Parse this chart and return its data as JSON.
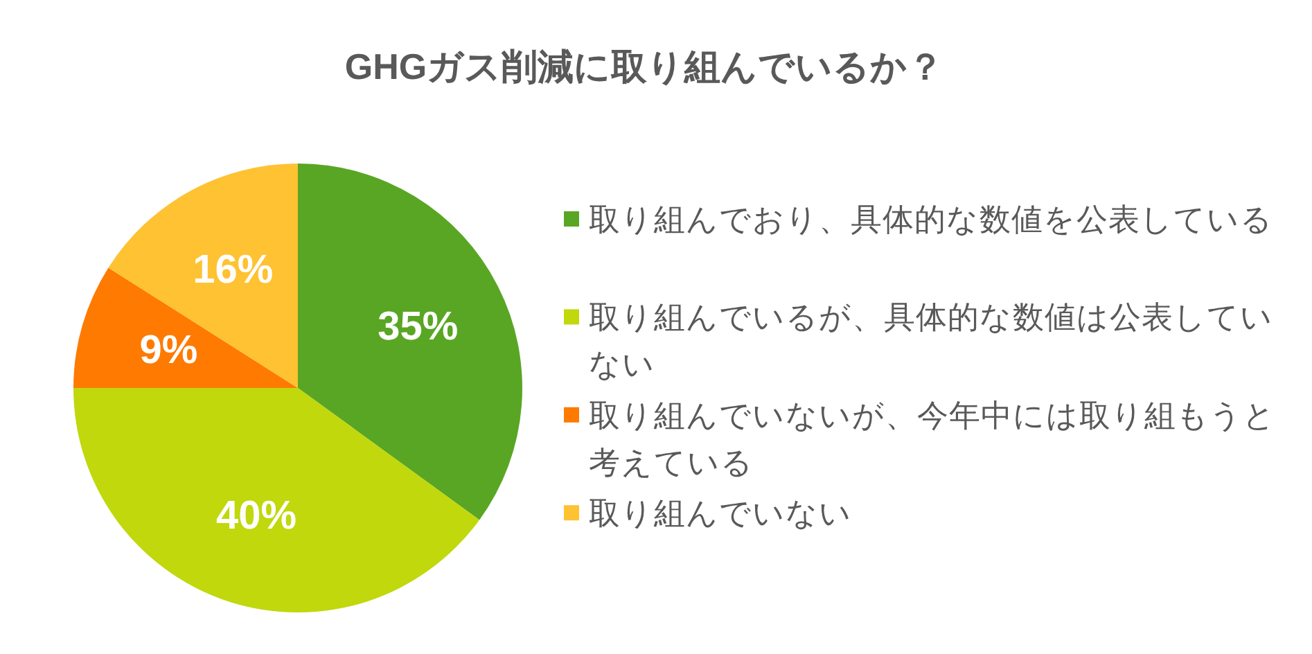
{
  "chart_data": {
    "type": "pie",
    "title": "GHGガス削減に取り組んでいるか？",
    "categories": [
      "取り組んでおり、具体的な数値を公表している",
      "取り組んでいるが、具体的な数値は公表していない",
      "取り組んでいないが、今年中には取り組もうと考えている",
      "取り組んでいない"
    ],
    "values": [
      35,
      40,
      9,
      16
    ],
    "colors": [
      "#59a624",
      "#c0d80c",
      "#fe7a00",
      "#fec232"
    ],
    "value_labels": [
      "35%",
      "40%",
      "9%",
      "16%"
    ],
    "legend": "right"
  }
}
